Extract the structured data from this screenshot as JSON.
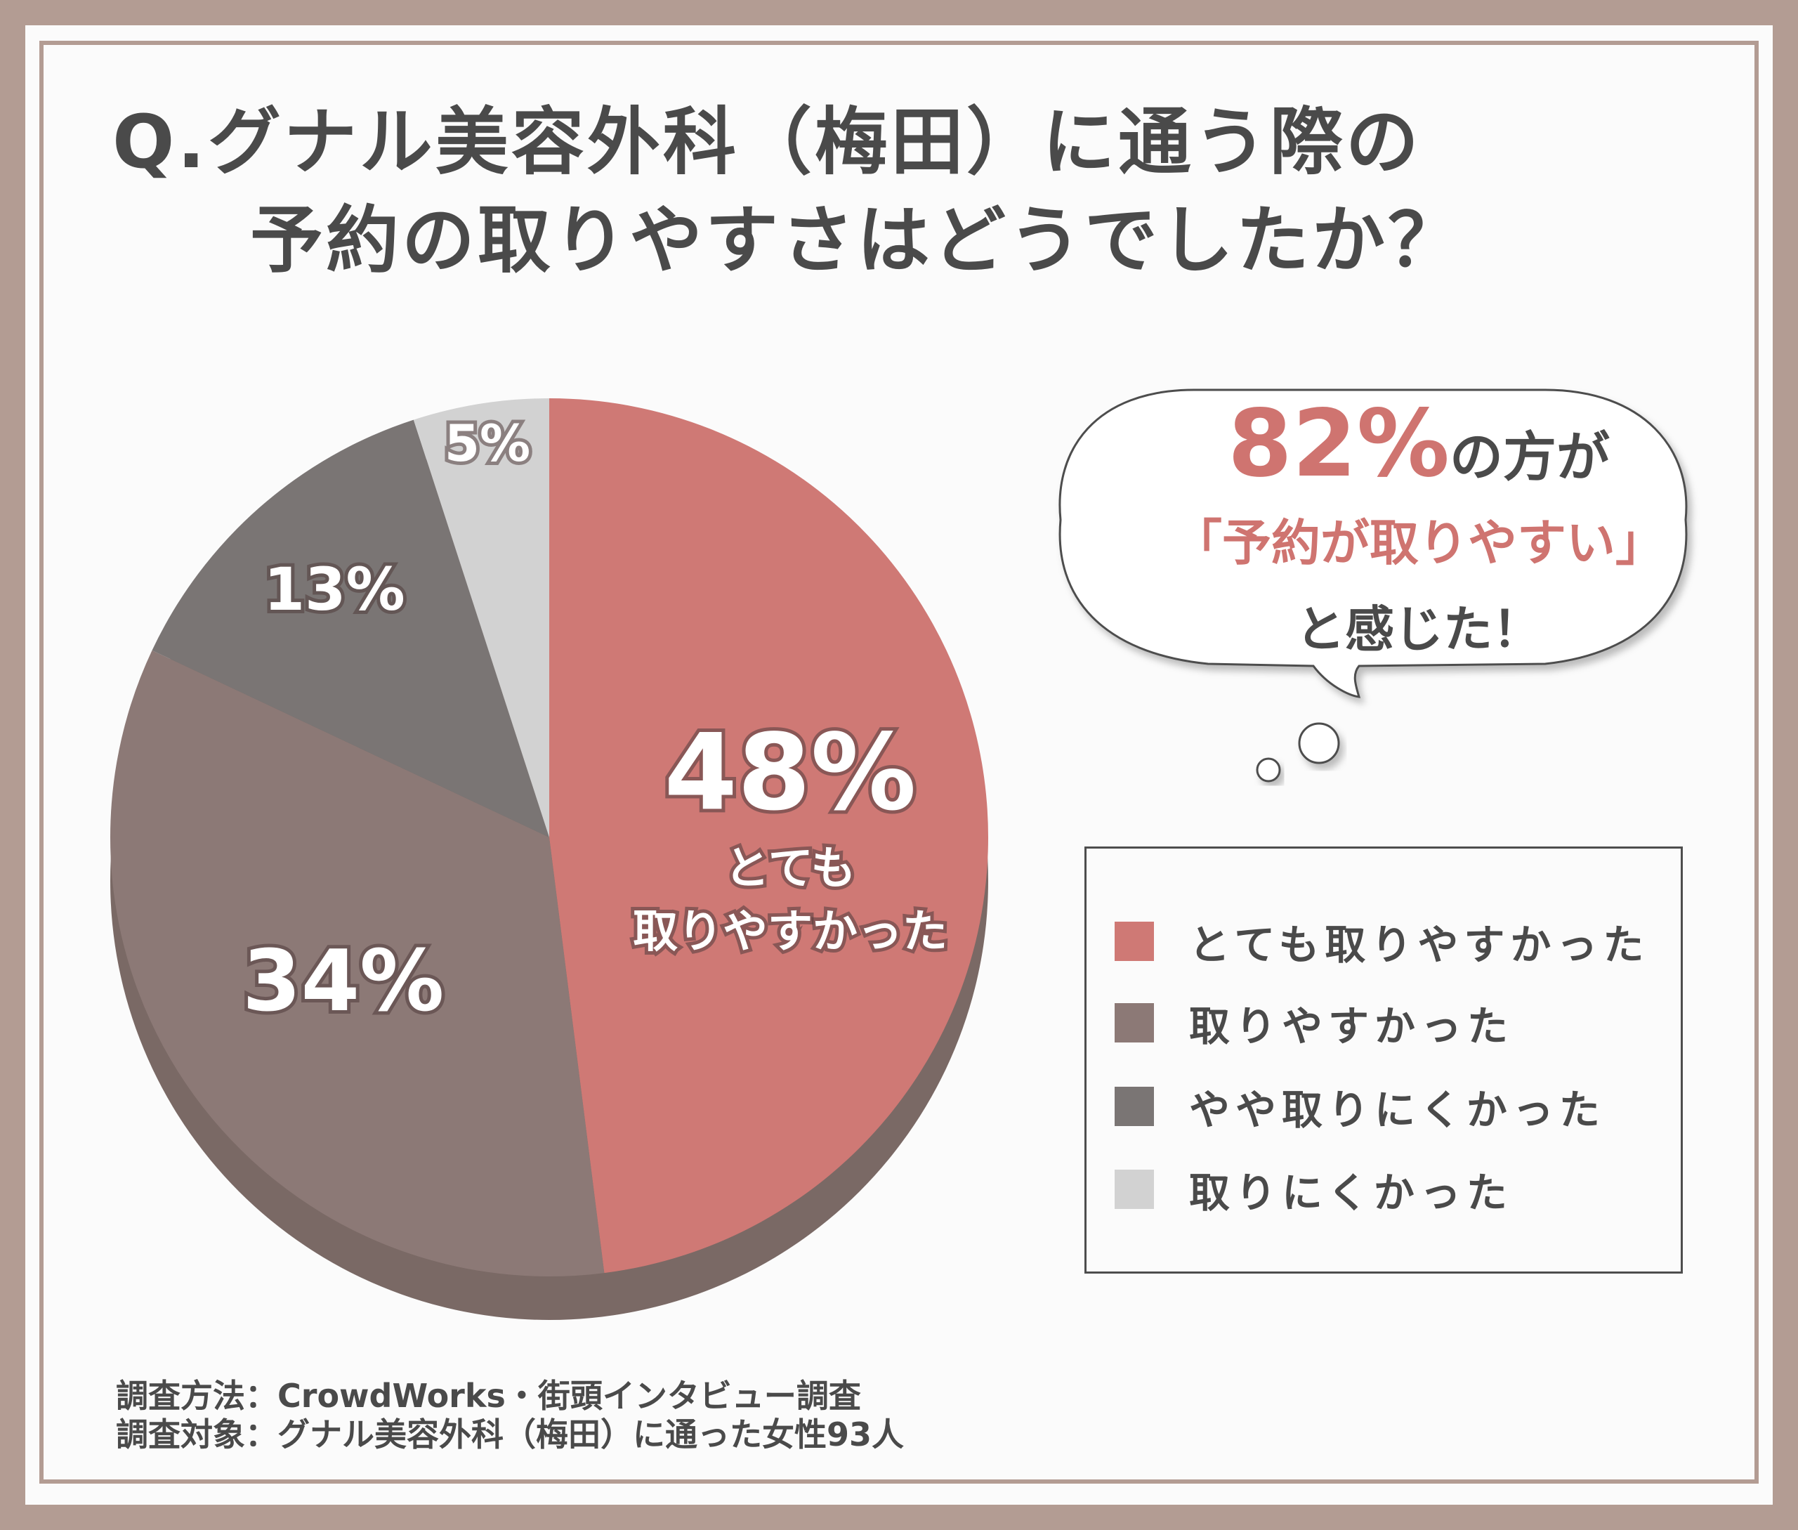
{
  "title": {
    "line1": "Q.グナル美容外科（梅田）に通う際の",
    "line2": "予約の取りやすさはどうでしたか？"
  },
  "colors": {
    "slice_1": "#cf7975",
    "slice_2": "#8c7976",
    "slice_3": "#7a7574",
    "slice_4": "#d2d2d2",
    "accent": "#cf7470",
    "text": "#4a4a4a",
    "frame": "#b39c93"
  },
  "chart_data": {
    "type": "pie",
    "categories": [
      "とても取りやすかった",
      "取りやすかった",
      "やや取りにくかった",
      "取りにくかった"
    ],
    "values": [
      48,
      34,
      13,
      5
    ],
    "value_labels": [
      "48%",
      "34%",
      "13%",
      "5%"
    ],
    "slice_1_sublabel_1": "とても",
    "slice_1_sublabel_2": "取りやすかった",
    "legend_position": "right",
    "start_angle_deg": 0,
    "direction": "clockwise"
  },
  "callout": {
    "percent": "82%",
    "line1_suffix": "の方が",
    "line2": "「予約が取りやすい」",
    "line3": "と感じた！"
  },
  "footer": {
    "method": "調査方法：CrowdWorks・街頭インタビュー調査",
    "target": "調査対象：グナル美容外科（梅田）に通った女性93人"
  }
}
